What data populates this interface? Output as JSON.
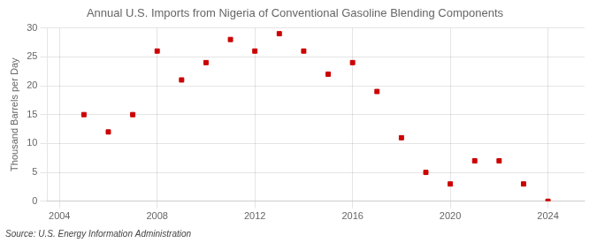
{
  "chart_data": {
    "type": "scatter",
    "title": "Annual U.S. Imports from Nigeria of Conventional Gasoline Blending Components",
    "ylabel": "Thousand Barrels per Day",
    "annotations": [
      "Source: U.S. Energy Information Administration"
    ],
    "x": [
      2005,
      2006,
      2007,
      2008,
      2009,
      2010,
      2011,
      2012,
      2013,
      2014,
      2015,
      2016,
      2017,
      2018,
      2019,
      2020,
      2021,
      2022,
      2023,
      2024
    ],
    "values": [
      15,
      12,
      15,
      26,
      21,
      24,
      28,
      26,
      29,
      26,
      22,
      24,
      19,
      11,
      5,
      3,
      7,
      7,
      3,
      0
    ],
    "color": "#cc0000",
    "marker": "square",
    "xlim": [
      2003.5,
      2025.5
    ],
    "xticks": [
      2004,
      2008,
      2012,
      2016,
      2020,
      2024
    ],
    "ylim": [
      0,
      30
    ],
    "yticks": [
      0,
      5,
      10,
      15,
      20,
      25,
      30
    ],
    "grid": true
  }
}
